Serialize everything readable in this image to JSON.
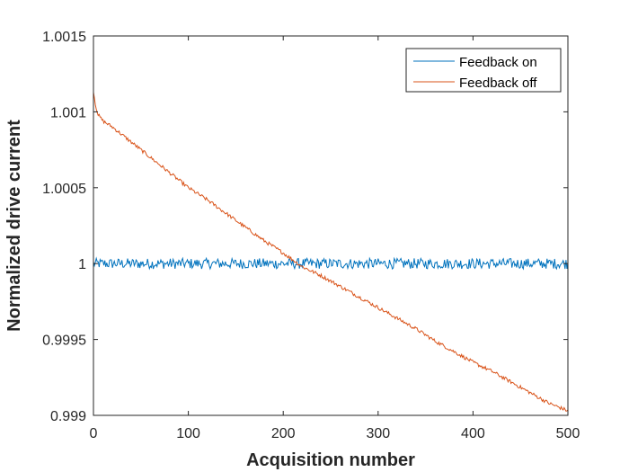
{
  "chart_data": {
    "type": "line",
    "title": "",
    "xlabel": "Acquisition number",
    "ylabel": "Normalized drive current",
    "xlim": [
      0,
      500
    ],
    "ylim": [
      0.999,
      1.0015
    ],
    "xticks": [
      0,
      100,
      200,
      300,
      400,
      500
    ],
    "xtick_labels": [
      "0",
      "100",
      "200",
      "300",
      "400",
      "500"
    ],
    "yticks": [
      0.999,
      0.9995,
      1,
      1.0005,
      1.001,
      1.0015
    ],
    "ytick_labels": [
      "0.999",
      "0.9995",
      "1",
      "1.0005",
      "1.001",
      "1.0015"
    ],
    "grid": false,
    "legend_position": "top-right",
    "series": [
      {
        "name": "Feedback on",
        "color": "#0072BD",
        "x": [
          0,
          20,
          40,
          60,
          80,
          100,
          120,
          140,
          160,
          180,
          200,
          220,
          240,
          260,
          280,
          300,
          320,
          340,
          360,
          380,
          400,
          420,
          440,
          460,
          480,
          500
        ],
        "y": [
          1.0,
          1.0,
          1.0,
          1.0,
          1.0,
          1.0,
          1.0,
          1.0,
          1.0,
          1.0,
          1.0,
          1.0,
          1.0,
          1.0,
          1.0,
          1.0,
          1.0,
          1.0,
          1.0,
          1.0,
          1.0,
          1.0,
          1.0,
          1.0,
          1.0,
          1.0
        ],
        "noise": 3.5e-05
      },
      {
        "name": "Feedback off",
        "color": "#D95319",
        "x": [
          0,
          2,
          5,
          10,
          20,
          40,
          60,
          80,
          100,
          120,
          140,
          160,
          180,
          200,
          220,
          240,
          260,
          280,
          300,
          320,
          340,
          360,
          380,
          400,
          420,
          440,
          460,
          480,
          500
        ],
        "y": [
          1.00114,
          1.00105,
          1.00098,
          1.00094,
          1.0009,
          1.0008,
          1.0007,
          1.0006,
          1.0005,
          1.00042,
          1.00033,
          1.00024,
          1.00015,
          1.00007,
          0.99998,
          0.99992,
          0.99985,
          0.99978,
          0.99971,
          0.99964,
          0.99957,
          0.99949,
          0.99942,
          0.99935,
          0.99929,
          0.99922,
          0.99915,
          0.99908,
          0.99903
        ],
        "noise": 1.2e-05
      }
    ]
  }
}
